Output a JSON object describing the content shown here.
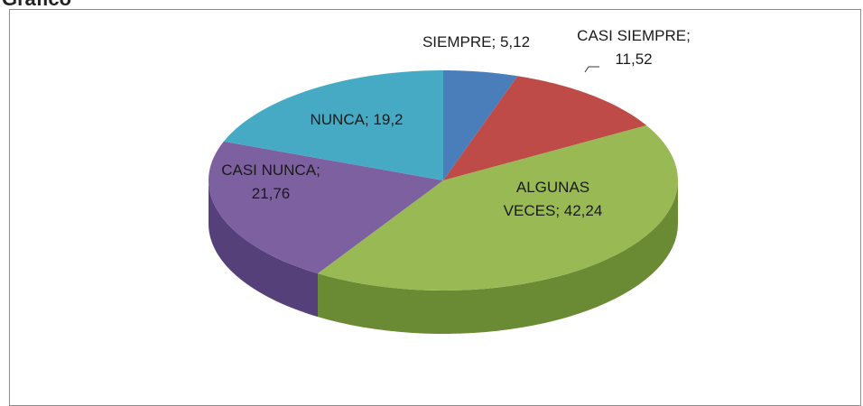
{
  "chart_data": {
    "type": "pie",
    "title": "Gráfico",
    "categories": [
      "SIEMPRE",
      "CASI SIEMPRE",
      "ALGUNAS VECES",
      "CASI NUNCA",
      "NUNCA"
    ],
    "values": [
      5.12,
      11.52,
      42.24,
      21.76,
      19.2
    ],
    "value_labels": [
      "5,12",
      "11,52",
      "42,24",
      "21,76",
      "19,2"
    ],
    "label_separator": "; ",
    "colors": [
      "#4a7ebb",
      "#be4b48",
      "#98b954",
      "#7d60a0",
      "#46aac5"
    ],
    "side_colors": [
      "#2f5a8c",
      "#8a2f2d",
      "#6a8a34",
      "#55407a",
      "#2b7f97"
    ]
  }
}
